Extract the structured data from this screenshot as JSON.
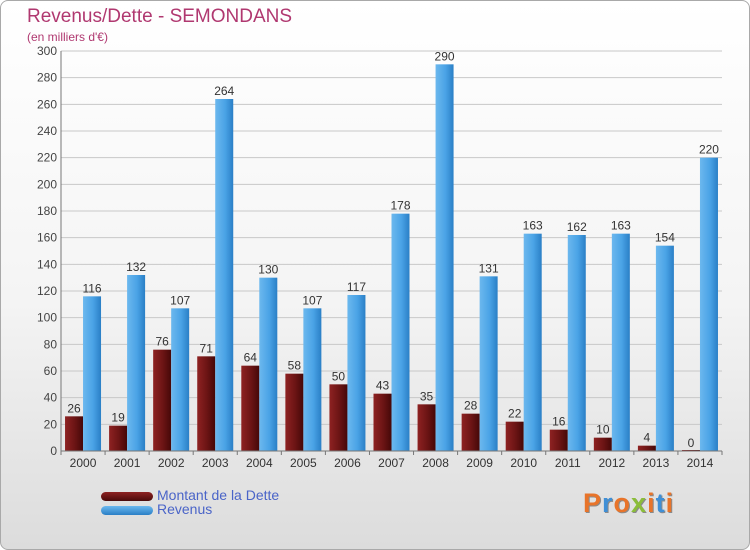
{
  "title": "Revenus/Dette - SEMONDANS",
  "subtitle": "(en milliers d'€)",
  "watermark": "Proxiti",
  "colors": {
    "title": "#b03870",
    "debt_bar": "#6b1414",
    "revenue_bar": "#3a95dc",
    "legend_text": "#4a64c8"
  },
  "chart_data": {
    "type": "bar",
    "categories": [
      "2000",
      "2001",
      "2002",
      "2003",
      "2004",
      "2005",
      "2006",
      "2007",
      "2008",
      "2009",
      "2010",
      "2011",
      "2012",
      "2013",
      "2014"
    ],
    "series": [
      {
        "name": "Montant de la Dette",
        "values": [
          26,
          19,
          76,
          71,
          64,
          58,
          50,
          43,
          35,
          28,
          22,
          16,
          10,
          4,
          0
        ]
      },
      {
        "name": "Revenus",
        "values": [
          116,
          132,
          107,
          264,
          130,
          107,
          117,
          178,
          290,
          131,
          163,
          162,
          163,
          154,
          220
        ]
      }
    ],
    "ylim": [
      0,
      300
    ],
    "yticks": [
      0,
      20,
      40,
      60,
      80,
      100,
      120,
      140,
      160,
      180,
      200,
      220,
      240,
      260,
      280,
      300
    ],
    "grid": true,
    "legend_position": "bottom-left"
  }
}
